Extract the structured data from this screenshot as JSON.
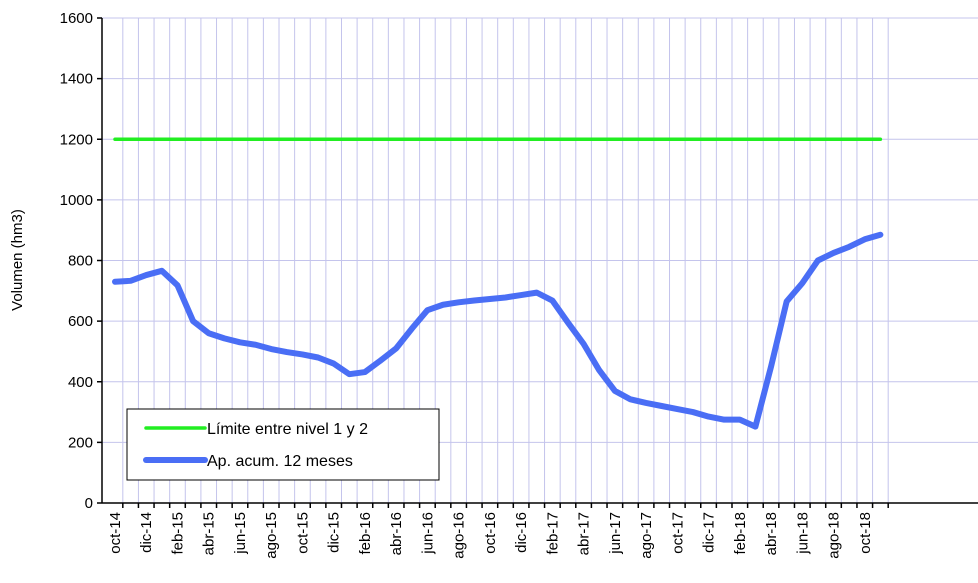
{
  "chart_data": {
    "type": "line",
    "ylabel": "Volumen (hm3)",
    "ylim": [
      0,
      1600
    ],
    "yticks": [
      0,
      200,
      400,
      600,
      800,
      1000,
      1200,
      1400,
      1600
    ],
    "categories": [
      "oct-14",
      "nov-14",
      "dic-14",
      "ene-15",
      "feb-15",
      "mar-15",
      "abr-15",
      "may-15",
      "jun-15",
      "jul-15",
      "ago-15",
      "sep-15",
      "oct-15",
      "nov-15",
      "dic-15",
      "ene-16",
      "feb-16",
      "mar-16",
      "abr-16",
      "may-16",
      "jun-16",
      "jul-16",
      "ago-16",
      "sep-16",
      "oct-16",
      "nov-16",
      "dic-16",
      "ene-17",
      "feb-17",
      "mar-17",
      "abr-17",
      "may-17",
      "jun-17",
      "jul-17",
      "ago-17",
      "sep-17",
      "oct-17",
      "nov-17",
      "dic-17",
      "ene-18",
      "feb-18",
      "mar-18",
      "abr-18",
      "may-18",
      "jun-18",
      "jul-18",
      "ago-18",
      "sep-18",
      "oct-18",
      "nov-18"
    ],
    "tick_labels": [
      "oct-14",
      "dic-14",
      "feb-15",
      "abr-15",
      "jun-15",
      "ago-15",
      "oct-15",
      "dic-15",
      "feb-16",
      "abr-16",
      "jun-16",
      "ago-16",
      "oct-16",
      "dic-16",
      "feb-17",
      "abr-17",
      "jun-17",
      "ago-17",
      "oct-17",
      "dic-17",
      "feb-18",
      "abr-18",
      "jun-18",
      "ago-18",
      "oct-18"
    ],
    "grid": true,
    "legend_placement": "bottom-left",
    "series": [
      {
        "name": "Límite entre nivel 1 y 2",
        "color": "#22ee22",
        "values": [
          1200,
          1200,
          1200,
          1200,
          1200,
          1200,
          1200,
          1200,
          1200,
          1200,
          1200,
          1200,
          1200,
          1200,
          1200,
          1200,
          1200,
          1200,
          1200,
          1200,
          1200,
          1200,
          1200,
          1200,
          1200,
          1200,
          1200,
          1200,
          1200,
          1200,
          1200,
          1200,
          1200,
          1200,
          1200,
          1200,
          1200,
          1200,
          1200,
          1200,
          1200,
          1200,
          1200,
          1200,
          1200,
          1200,
          1200,
          1200,
          1200,
          1200
        ]
      },
      {
        "name": "Ap. acum. 12 meses",
        "color": "#4a6ef5",
        "values": [
          730,
          733,
          752,
          766,
          718,
          600,
          560,
          543,
          530,
          522,
          508,
          498,
          490,
          480,
          460,
          425,
          432,
          470,
          510,
          575,
          636,
          654,
          662,
          668,
          673,
          678,
          686,
          694,
          668,
          595,
          525,
          438,
          370,
          342,
          330,
          320,
          310,
          300,
          285,
          275,
          275,
          252,
          450,
          665,
          725,
          800,
          825,
          845,
          870,
          885
        ]
      }
    ]
  }
}
